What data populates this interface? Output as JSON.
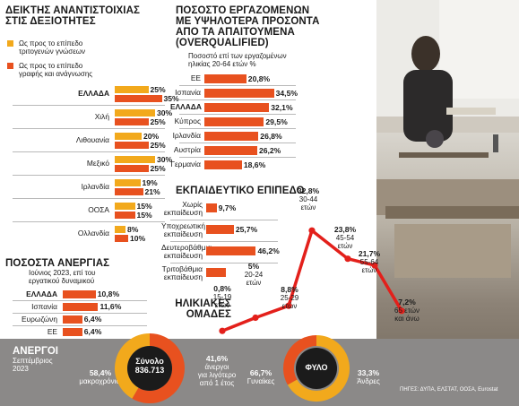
{
  "indices": {
    "title": [
      "ΔΕΙΚΤΗΣ ΑΝΑΝΤΙΣΤΟΙΧΙΑΣ",
      "ΣΤΙΣ ΔΕΞΙΟΤΗΤΕΣ"
    ],
    "legend": [
      {
        "text": [
          "Ως προς το επίπεδο",
          "τριτογενών γνώσεων"
        ],
        "color": "#f2a91c"
      },
      {
        "text": [
          "Ως προς το επίπεδο",
          "γραφής και ανάγνωσης"
        ],
        "color": "#e8511f"
      }
    ]
  },
  "unemployment": {
    "title": [
      "ΠΟΣΟΣΤΑ ΑΝΕΡΓΙΑΣ"
    ],
    "subtitle": [
      "Ιούνιος 2023, επί του",
      "εργατικού δυναμικού"
    ]
  },
  "overqualified": {
    "title": [
      "ΠΟΣΟΣΤΟ ΕΡΓΑΖΟΜΕΝΩΝ",
      "ΜΕ ΥΨΗΛΟΤΕΡΑ ΠΡΟΣΟΝΤΑ",
      "ΑΠΟ ΤΑ ΑΠΑΙΤΟΥΜΕΝΑ",
      "(OVERQUALIFIED)"
    ],
    "subtitle": [
      "Ποσοστό επί των εργαζομένων",
      "ηλικίας 20-64 ετών %"
    ]
  },
  "education": {
    "title": [
      "ΕΚΠΑΙΔΕΥΤΙΚΟ ΕΠΙΠΕΔΟ"
    ]
  },
  "age": {
    "title": [
      "ΗΛΙΚΙΑΚΕΣ",
      "ΟΜΑΔΕΣ"
    ],
    "labels": [
      {
        "value": "0,8%",
        "range": [
          "15-19",
          "ετών"
        ]
      },
      {
        "value": "5%",
        "range": [
          "20-24",
          "ετών"
        ]
      },
      {
        "value": "8,8%",
        "range": [
          "25-29",
          "ετών"
        ]
      },
      {
        "value": "32,8%",
        "range": [
          "30-44",
          "ετών"
        ]
      },
      {
        "value": "23,8%",
        "range": [
          "45-54",
          "ετών"
        ]
      },
      {
        "value": "21,7%",
        "range": [
          "55-64",
          "ετών"
        ]
      },
      {
        "value": "7,2%",
        "range": [
          "65 ετών",
          "και άνω"
        ]
      }
    ]
  },
  "unemployed": {
    "title": [
      "ΑΝΕΡΓΟΙ",
      "Σεπτέμβριος",
      "2023"
    ],
    "total_label": "Σύνολο",
    "total_value": "836.713",
    "long_term_pct": "58,4%",
    "long_term_label": "μακροχρόνιοι",
    "short_term_pct": "41,6%",
    "short_term_label": [
      "άνεργοι",
      "για λιγότερο",
      "από 1 έτος"
    ],
    "gender_label": "ΦΥΛΟ",
    "women_pct": "66,7%",
    "women_label": "Γυναίκες",
    "men_pct": "33,3%",
    "men_label": "Άνδρες"
  },
  "source": "ΠΗΓΕΣ: ΔΥΠΑ, ΕΛΣΤΑΤ, ΟΟΣΑ, Eurostat",
  "colors": {
    "orange": "#f2a91c",
    "red": "#e8511f",
    "line": "#e3201b",
    "grey": "#8b8988"
  },
  "chart_data": [
    {
      "type": "bar",
      "categories": [
        "ΕΛΛΑΔΑ",
        "Χιλή",
        "Λιθουανία",
        "Μεξικό",
        "Ιρλανδία",
        "ΟΟΣΑ",
        "Ολλανδία"
      ],
      "series": [
        {
          "name": "Ως προς το επίπεδο τριτογενών γνώσεων",
          "values": [
            25,
            30,
            20,
            30,
            19,
            15,
            8
          ],
          "labels": [
            "25%",
            "30%",
            "20%",
            "30%",
            "19%",
            "15%",
            "8%"
          ]
        },
        {
          "name": "Ως προς το επίπεδο γραφής και ανάγνωσης",
          "values": [
            35,
            25,
            25,
            25,
            21,
            15,
            10
          ],
          "labels": [
            "35%",
            "25%",
            "25%",
            "25%",
            "21%",
            "15%",
            "10%"
          ]
        }
      ]
    },
    {
      "type": "bar",
      "categories": [
        "ΕΛΛΑΔΑ",
        "Ισπανία",
        "Ευρωζώνη",
        "ΕΕ"
      ],
      "values": [
        10.8,
        11.6,
        6.4,
        6.4
      ],
      "labels": [
        "10,8%",
        "11,6%",
        "6,4%",
        "6,4%"
      ]
    },
    {
      "type": "bar",
      "categories": [
        "ΕΕ",
        "Ισπανία",
        "ΕΛΛΑΔΑ",
        "Κύπρος",
        "Ιρλανδία",
        "Αυστρία",
        "Γερμανία"
      ],
      "values": [
        20.8,
        34.5,
        32.1,
        29.5,
        26.8,
        26.2,
        18.6
      ],
      "labels": [
        "20,8%",
        "34,5%",
        "32,1%",
        "29,5%",
        "26,8%",
        "26,2%",
        "18,6%"
      ]
    },
    {
      "type": "bar",
      "categories": [
        [
          "Χωρίς",
          "εκπαίδευση"
        ],
        [
          "Υποχρεωτική",
          "εκπαίδευση"
        ],
        [
          "Δευτεροβάθμια",
          "εκπαίδευση"
        ],
        [
          "Τριτοβάθμια",
          "εκπαίδευση"
        ]
      ],
      "values": [
        9.7,
        25.7,
        46.2,
        18.4
      ],
      "labels": [
        "9,7%",
        "25,7%",
        "46,2%",
        ""
      ]
    },
    {
      "type": "line",
      "categories": [
        "15-19",
        "20-24",
        "25-29",
        "30-44",
        "45-54",
        "55-64",
        "65+"
      ],
      "values": [
        0.8,
        5,
        8.8,
        32.8,
        23.8,
        21.7,
        7.2
      ]
    },
    {
      "type": "pie",
      "categories": [
        "μακροχρόνιοι",
        "άνεργοι για λιγότερο από 1 έτος"
      ],
      "values": [
        58.4,
        41.6
      ]
    },
    {
      "type": "pie",
      "categories": [
        "Γυναίκες",
        "Άνδρες"
      ],
      "values": [
        66.7,
        33.3
      ]
    }
  ]
}
